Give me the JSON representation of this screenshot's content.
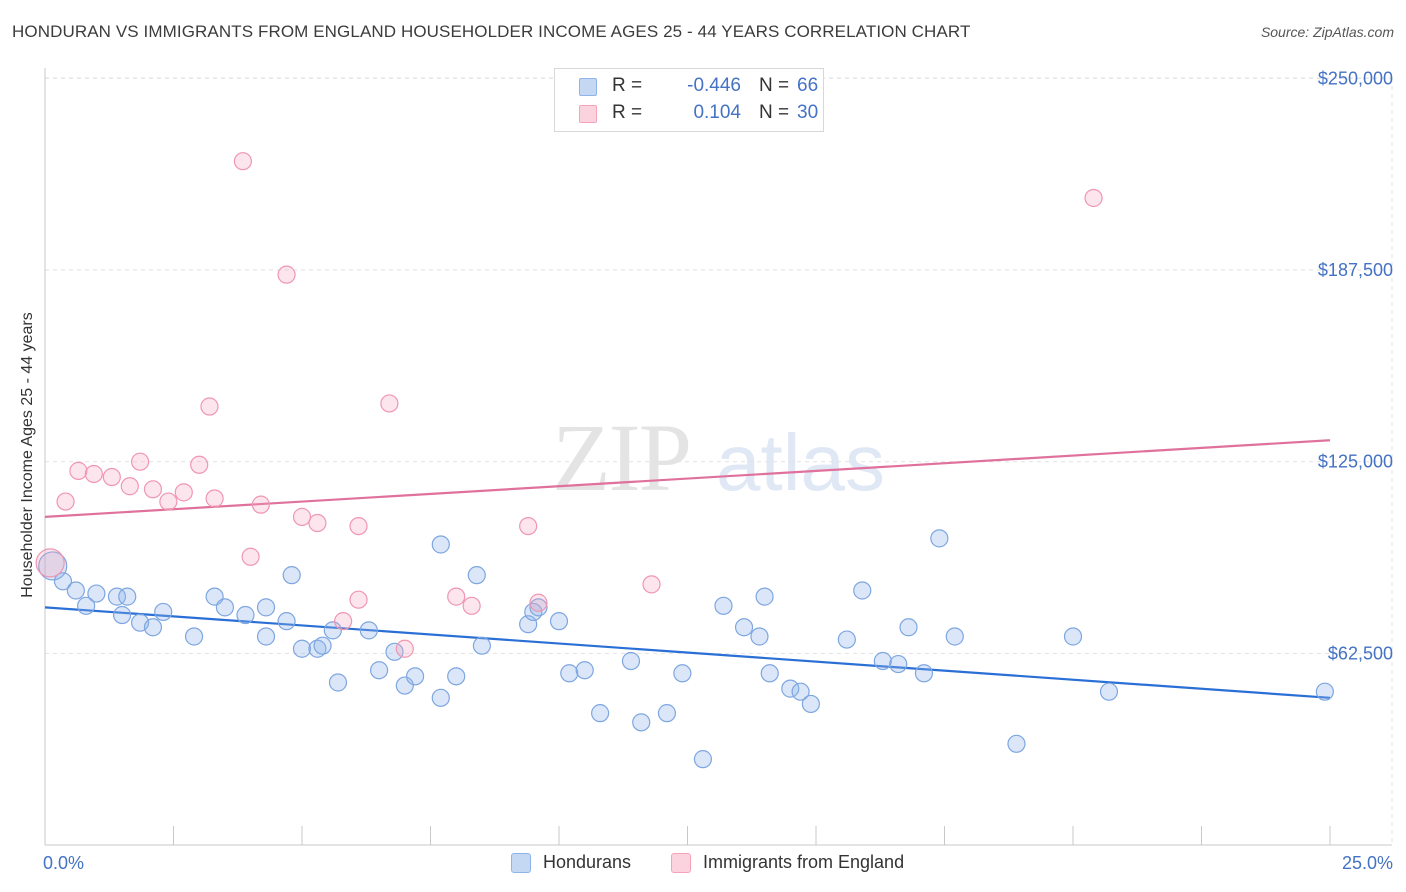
{
  "header": {
    "title": "HONDURAN VS IMMIGRANTS FROM ENGLAND HOUSEHOLDER INCOME AGES 25 - 44 YEARS CORRELATION CHART",
    "source": "Source: ZipAtlas.com"
  },
  "watermark": {
    "zip": "ZIP",
    "atlas": "atlas"
  },
  "legend": {
    "rows": [
      {
        "r_label": "R =",
        "r_value": "-0.446",
        "n_label": "N =",
        "n_value": "66",
        "color": "#8fb4e8"
      },
      {
        "r_label": "R =",
        "r_value": "0.104",
        "n_label": "N =",
        "n_value": "30",
        "color": "#f5a3bb"
      }
    ]
  },
  "bottom_legend": {
    "hondurans": "Hondurans",
    "england": "Immigrants from England"
  },
  "chart_data": {
    "type": "scatter",
    "title": "HONDURAN VS IMMIGRANTS FROM ENGLAND HOUSEHOLDER INCOME AGES 25 - 44 YEARS CORRELATION CHART",
    "xlabel": "",
    "ylabel": "Householder Income Ages 25 - 44 years",
    "xlim": [
      0,
      25
    ],
    "ylim": [
      0,
      256000
    ],
    "x_tick_labels": [
      "0.0%",
      "25.0%"
    ],
    "y_ticks": [
      62500,
      125000,
      187500,
      250000
    ],
    "y_tick_labels": [
      "$62,500",
      "$125,000",
      "$187,500",
      "$250,000"
    ],
    "grid": true,
    "series": [
      {
        "name": "Hondurans",
        "color": "#8fb4e8",
        "line_color": "#2a6fd6",
        "trend": [
          [
            0,
            77500
          ],
          [
            25,
            48000
          ]
        ],
        "points": [
          [
            0.15,
            91000
          ],
          [
            0.35,
            86000
          ],
          [
            0.6,
            83000
          ],
          [
            1.0,
            82000
          ],
          [
            0.8,
            78000
          ],
          [
            1.4,
            81000
          ],
          [
            1.6,
            81000
          ],
          [
            1.5,
            75000
          ],
          [
            1.85,
            72500
          ],
          [
            2.1,
            71000
          ],
          [
            2.9,
            68000
          ],
          [
            2.3,
            76000
          ],
          [
            3.3,
            81000
          ],
          [
            3.9,
            75000
          ],
          [
            3.5,
            77500
          ],
          [
            4.3,
            77500
          ],
          [
            4.3,
            68000
          ],
          [
            4.7,
            73000
          ],
          [
            4.8,
            88000
          ],
          [
            5.0,
            64000
          ],
          [
            5.3,
            64000
          ],
          [
            5.4,
            65000
          ],
          [
            5.6,
            70000
          ],
          [
            5.7,
            53000
          ],
          [
            6.5,
            57000
          ],
          [
            6.3,
            70000
          ],
          [
            6.8,
            63000
          ],
          [
            7.0,
            52000
          ],
          [
            7.2,
            55000
          ],
          [
            7.7,
            98000
          ],
          [
            7.7,
            48000
          ],
          [
            8.0,
            55000
          ],
          [
            8.4,
            88000
          ],
          [
            8.5,
            65000
          ],
          [
            9.4,
            72000
          ],
          [
            9.5,
            76000
          ],
          [
            9.6,
            77500
          ],
          [
            10.2,
            56000
          ],
          [
            10.5,
            57000
          ],
          [
            10.0,
            73000
          ],
          [
            10.8,
            43000
          ],
          [
            11.4,
            60000
          ],
          [
            11.6,
            40000
          ],
          [
            12.1,
            43000
          ],
          [
            12.4,
            56000
          ],
          [
            12.8,
            28000
          ],
          [
            13.2,
            78000
          ],
          [
            13.6,
            71000
          ],
          [
            13.9,
            68000
          ],
          [
            14.0,
            81000
          ],
          [
            14.1,
            56000
          ],
          [
            14.5,
            51000
          ],
          [
            14.7,
            50000
          ],
          [
            14.9,
            46000
          ],
          [
            15.6,
            67000
          ],
          [
            15.9,
            83000
          ],
          [
            16.3,
            60000
          ],
          [
            16.6,
            59000
          ],
          [
            16.8,
            71000
          ],
          [
            17.1,
            56000
          ],
          [
            17.4,
            100000
          ],
          [
            17.7,
            68000
          ],
          [
            18.9,
            33000
          ],
          [
            20.0,
            68000
          ],
          [
            20.7,
            50000
          ],
          [
            24.9,
            50000
          ]
        ]
      },
      {
        "name": "Immigrants from England",
        "color": "#f5a3bb",
        "line_color": "#e0719c",
        "trend": [
          [
            0,
            107000
          ],
          [
            25,
            132000
          ]
        ],
        "points": [
          [
            0.4,
            112000
          ],
          [
            0.65,
            122000
          ],
          [
            0.95,
            121000
          ],
          [
            1.3,
            120000
          ],
          [
            1.65,
            117000
          ],
          [
            1.85,
            125000
          ],
          [
            2.1,
            116000
          ],
          [
            2.4,
            112000
          ],
          [
            2.7,
            115000
          ],
          [
            3.0,
            124000
          ],
          [
            3.3,
            113000
          ],
          [
            3.2,
            143000
          ],
          [
            3.85,
            223000
          ],
          [
            4.0,
            94000
          ],
          [
            4.2,
            111000
          ],
          [
            4.7,
            186000
          ],
          [
            5.0,
            107000
          ],
          [
            5.3,
            105000
          ],
          [
            5.8,
            73000
          ],
          [
            6.1,
            80000
          ],
          [
            6.1,
            104000
          ],
          [
            6.7,
            144000
          ],
          [
            7.0,
            64000
          ],
          [
            8.0,
            81000
          ],
          [
            8.3,
            78000
          ],
          [
            9.4,
            104000
          ],
          [
            9.6,
            79000
          ],
          [
            11.8,
            85000
          ],
          [
            20.4,
            211000
          ],
          [
            0.1,
            92000
          ]
        ]
      }
    ]
  }
}
